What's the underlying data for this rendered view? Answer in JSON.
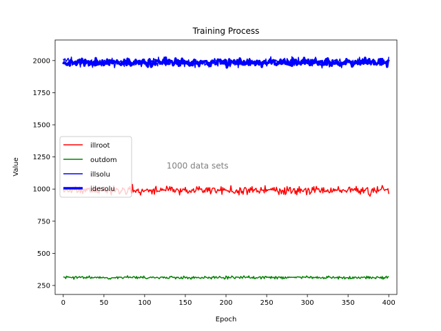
{
  "chart_data": {
    "type": "line",
    "title": "Training Process",
    "xlabel": "Epoch",
    "ylabel": "Value",
    "xlim": [
      -10,
      410
    ],
    "ylim": [
      180,
      2160
    ],
    "xticks": [
      0,
      50,
      100,
      150,
      200,
      250,
      300,
      350,
      400
    ],
    "yticks": [
      250,
      500,
      750,
      1000,
      1250,
      1500,
      1750,
      2000
    ],
    "grid": false,
    "legend_position": "center-left",
    "annotation": {
      "text": "1000 data sets",
      "x": 165,
      "y": 1160,
      "color": "#808080"
    },
    "x": {
      "start": 0,
      "end": 400,
      "count": 401
    },
    "series": [
      {
        "name": "illroot",
        "color": "#ff0000",
        "line_width": 1.5,
        "mean": 990,
        "spread": 28,
        "seed": 11
      },
      {
        "name": "outdom",
        "color": "#008000",
        "line_width": 1.5,
        "mean": 312,
        "spread": 10,
        "seed": 23
      },
      {
        "name": "illsolu",
        "color": "#0000ff",
        "line_width": 1.5,
        "mean": 1985,
        "spread": 30,
        "seed": 37
      },
      {
        "name": "idesolu",
        "color": "#0000ff",
        "line_width": 3.5,
        "mean": 1985,
        "spread": 25,
        "seed": 53
      }
    ]
  }
}
